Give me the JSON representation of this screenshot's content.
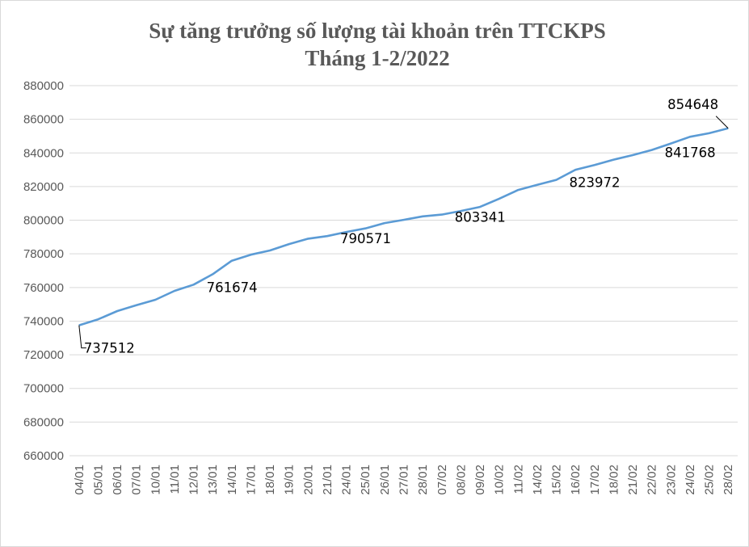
{
  "chart_data": {
    "type": "line",
    "title": [
      "Sự tăng trưởng số lượng tài khoản trên TTCKPS",
      "Tháng 1-2/2022"
    ],
    "xlabel": "",
    "ylabel": "",
    "ylim": [
      660000,
      880000
    ],
    "yticks": [
      "660000",
      "680000",
      "700000",
      "720000",
      "740000",
      "760000",
      "780000",
      "800000",
      "820000",
      "840000",
      "860000",
      "880000"
    ],
    "grid": true,
    "legend": "none",
    "line_color": "#5b9bd5",
    "categories": [
      "04/01",
      "05/01",
      "06/01",
      "07/01",
      "10/01",
      "11/01",
      "12/01",
      "13/01",
      "14/01",
      "17/01",
      "18/01",
      "19/01",
      "20/01",
      "21/01",
      "24/01",
      "25/01",
      "26/01",
      "27/01",
      "28/01",
      "07/02",
      "08/02",
      "09/02",
      "10/02",
      "11/02",
      "14/02",
      "15/02",
      "16/02",
      "17/02",
      "18/02",
      "21/02",
      "22/02",
      "23/02",
      "24/02",
      "25/02",
      "28/02"
    ],
    "series": [
      {
        "values": [
          737512,
          741100,
          746000,
          749500,
          752700,
          758000,
          761674,
          767900,
          775900,
          779500,
          782000,
          785800,
          789000,
          790571,
          793000,
          795100,
          798300,
          800200,
          802300,
          803341,
          805500,
          807900,
          812700,
          818000,
          821000,
          823972,
          830000,
          832800,
          836000,
          838700,
          841768,
          845600,
          849600,
          851700,
          854648
        ]
      }
    ],
    "data_labels": [
      {
        "category": "04/01",
        "value": "737512"
      },
      {
        "category": "12/01",
        "value": "761674"
      },
      {
        "category": "21/01",
        "value": "790571"
      },
      {
        "category": "07/02",
        "value": "803341"
      },
      {
        "category": "15/02",
        "value": "823972"
      },
      {
        "category": "22/02",
        "value": "841768"
      },
      {
        "category": "28/02",
        "value": "854648"
      }
    ]
  }
}
